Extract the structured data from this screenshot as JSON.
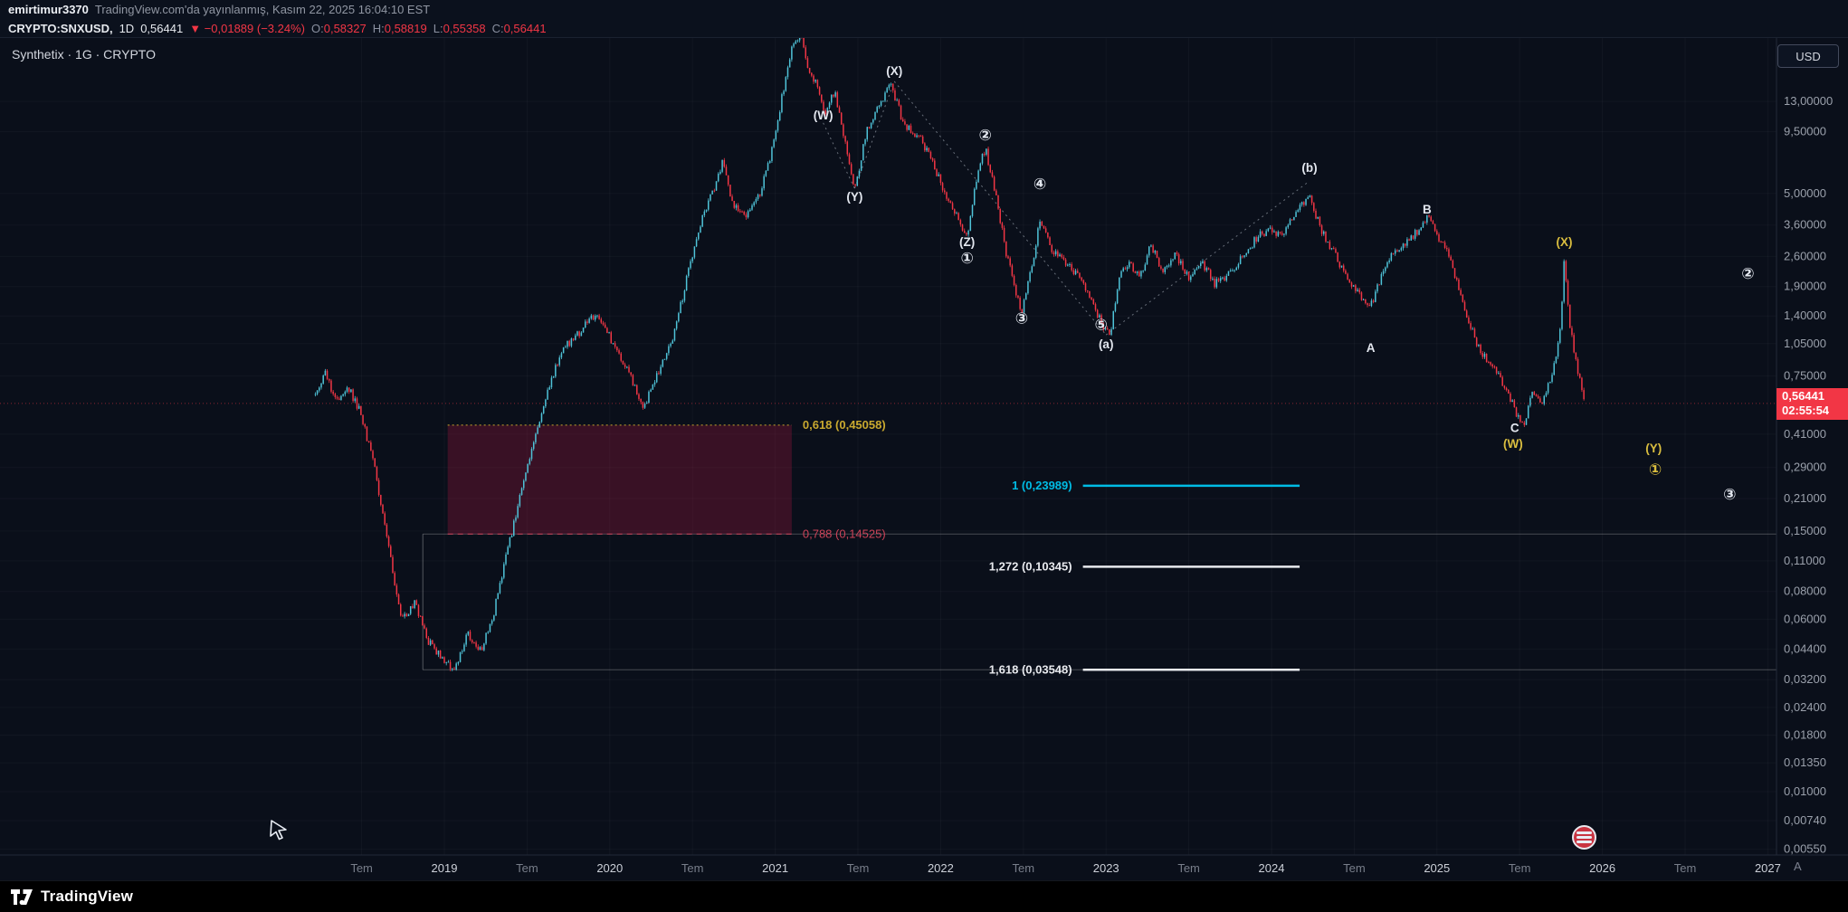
{
  "publish_bar": {
    "username": "emirtimur3370",
    "suffix": "TradingView.com'da yayınlanmış, Kasım 22, 2025 16:04:10 EST"
  },
  "symbol_bar": {
    "symbol": "CRYPTO:SNXUSD,",
    "interval": "1D",
    "last": "0,56441",
    "change": "▼ −0,01889 (−3.24%)",
    "ohlc": [
      {
        "label": "O:",
        "value": "0,58327"
      },
      {
        "label": "H:",
        "value": "0,58819"
      },
      {
        "label": "L:",
        "value": "0,55358"
      },
      {
        "label": "C:",
        "value": "0,56441"
      }
    ]
  },
  "legend": {
    "text": "Synthetix · 1G · CRYPTO"
  },
  "currency_button": {
    "label": "USD"
  },
  "price_badge": {
    "price": "0,56441",
    "countdown": "02:55:54",
    "color": "#f23645"
  },
  "axis_corner": {
    "label": "A"
  },
  "footer": {
    "brand": "TradingView"
  },
  "icons": {
    "cursor": "drawing-arrow-icon",
    "event": "red-circle-event-icon",
    "logo": "tradingview-logo-icon"
  },
  "colors": {
    "background": "#0a0f1a",
    "up": "#4fc3d8",
    "down": "#f23645",
    "gold": "#c9a92f",
    "fib_red": "#cc4358",
    "cyan": "#00bce5",
    "white_label": "#e3e7ef",
    "yellow_label": "#d9bd3f"
  },
  "chart_data": {
    "type": "candlestick",
    "title": "Synthetix SNXUSD · 1D · log scale",
    "scale": "log",
    "last_price": 0.56441,
    "x_axis": {
      "ticks": [
        {
          "t": 2018.5,
          "label": "Tem"
        },
        {
          "t": 2019,
          "label": "2019",
          "major": true
        },
        {
          "t": 2019.5,
          "label": "Tem"
        },
        {
          "t": 2020,
          "label": "2020",
          "major": true
        },
        {
          "t": 2020.5,
          "label": "Tem"
        },
        {
          "t": 2021,
          "label": "2021",
          "major": true
        },
        {
          "t": 2021.5,
          "label": "Tem"
        },
        {
          "t": 2022,
          "label": "2022",
          "major": true
        },
        {
          "t": 2022.5,
          "label": "Tem"
        },
        {
          "t": 2023,
          "label": "2023",
          "major": true
        },
        {
          "t": 2023.5,
          "label": "Tem"
        },
        {
          "t": 2024,
          "label": "2024",
          "major": true
        },
        {
          "t": 2024.5,
          "label": "Tem"
        },
        {
          "t": 2025,
          "label": "2025",
          "major": true
        },
        {
          "t": 2025.5,
          "label": "Tem"
        },
        {
          "t": 2026,
          "label": "2026",
          "major": true
        },
        {
          "t": 2026.5,
          "label": "Tem"
        },
        {
          "t": 2027,
          "label": "2027",
          "major": true
        }
      ]
    },
    "y_axis": {
      "ticks": [
        {
          "p": 13.0,
          "label": "13,00000"
        },
        {
          "p": 9.5,
          "label": "9,50000"
        },
        {
          "p": 5.0,
          "label": "5,00000"
        },
        {
          "p": 3.6,
          "label": "3,60000"
        },
        {
          "p": 2.6,
          "label": "2,60000"
        },
        {
          "p": 1.9,
          "label": "1,90000"
        },
        {
          "p": 1.4,
          "label": "1,40000"
        },
        {
          "p": 1.05,
          "label": "1,05000"
        },
        {
          "p": 0.75,
          "label": "0,75000"
        },
        {
          "p": 0.41,
          "label": "0,41000"
        },
        {
          "p": 0.29,
          "label": "0,29000"
        },
        {
          "p": 0.21,
          "label": "0,21000"
        },
        {
          "p": 0.15,
          "label": "0,15000"
        },
        {
          "p": 0.11,
          "label": "0,11000"
        },
        {
          "p": 0.08,
          "label": "0,08000"
        },
        {
          "p": 0.06,
          "label": "0,06000"
        },
        {
          "p": 0.044,
          "label": "0,04400"
        },
        {
          "p": 0.032,
          "label": "0,03200"
        },
        {
          "p": 0.024,
          "label": "0,02400"
        },
        {
          "p": 0.018,
          "label": "0,01800"
        },
        {
          "p": 0.0135,
          "label": "0,01350"
        },
        {
          "p": 0.01,
          "label": "0,01000"
        },
        {
          "p": 0.0074,
          "label": "0,00740"
        },
        {
          "p": 0.0055,
          "label": "0,00550"
        }
      ]
    },
    "price_path_keypoints": [
      [
        2018.22,
        0.62
      ],
      [
        2018.28,
        0.78
      ],
      [
        2018.34,
        0.58
      ],
      [
        2018.42,
        0.66
      ],
      [
        2018.5,
        0.5
      ],
      [
        2018.58,
        0.28
      ],
      [
        2018.66,
        0.13
      ],
      [
        2018.74,
        0.058
      ],
      [
        2018.82,
        0.072
      ],
      [
        2018.9,
        0.048
      ],
      [
        2018.98,
        0.04
      ],
      [
        2019.06,
        0.0355
      ],
      [
        2019.14,
        0.052
      ],
      [
        2019.22,
        0.043
      ],
      [
        2019.3,
        0.065
      ],
      [
        2019.4,
        0.14
      ],
      [
        2019.5,
        0.3
      ],
      [
        2019.6,
        0.55
      ],
      [
        2019.7,
        0.95
      ],
      [
        2019.8,
        1.15
      ],
      [
        2019.92,
        1.45
      ],
      [
        2020.02,
        1.05
      ],
      [
        2020.12,
        0.78
      ],
      [
        2020.2,
        0.52
      ],
      [
        2020.28,
        0.75
      ],
      [
        2020.38,
        1.1
      ],
      [
        2020.48,
        2.3
      ],
      [
        2020.56,
        3.9
      ],
      [
        2020.64,
        5.5
      ],
      [
        2020.68,
        7.0
      ],
      [
        2020.74,
        4.6
      ],
      [
        2020.82,
        3.9
      ],
      [
        2020.9,
        4.8
      ],
      [
        2020.98,
        7.8
      ],
      [
        2021.04,
        13.5
      ],
      [
        2021.1,
        22.0
      ],
      [
        2021.15,
        26.5
      ],
      [
        2021.2,
        18.5
      ],
      [
        2021.26,
        15.0
      ],
      [
        2021.3,
        11.5
      ],
      [
        2021.36,
        14.5
      ],
      [
        2021.42,
        8.5
      ],
      [
        2021.48,
        5.2
      ],
      [
        2021.55,
        9.5
      ],
      [
        2021.63,
        12.5
      ],
      [
        2021.7,
        15.5
      ],
      [
        2021.78,
        10.0
      ],
      [
        2021.86,
        9.2
      ],
      [
        2021.94,
        7.2
      ],
      [
        2022.02,
        5.2
      ],
      [
        2022.1,
        4.0
      ],
      [
        2022.16,
        3.2
      ],
      [
        2022.22,
        6.0
      ],
      [
        2022.27,
        8.0
      ],
      [
        2022.33,
        5.0
      ],
      [
        2022.4,
        2.6
      ],
      [
        2022.49,
        1.45
      ],
      [
        2022.55,
        2.3
      ],
      [
        2022.6,
        3.9
      ],
      [
        2022.68,
        2.7
      ],
      [
        2022.76,
        2.4
      ],
      [
        2022.84,
        2.1
      ],
      [
        2022.92,
        1.55
      ],
      [
        2022.98,
        1.28
      ],
      [
        2023.02,
        1.12
      ],
      [
        2023.08,
        2.1
      ],
      [
        2023.14,
        2.45
      ],
      [
        2023.2,
        2.05
      ],
      [
        2023.27,
        2.95
      ],
      [
        2023.34,
        2.25
      ],
      [
        2023.42,
        2.65
      ],
      [
        2023.5,
        2.05
      ],
      [
        2023.58,
        2.45
      ],
      [
        2023.66,
        1.95
      ],
      [
        2023.74,
        2.15
      ],
      [
        2023.82,
        2.55
      ],
      [
        2023.9,
        3.1
      ],
      [
        2023.98,
        3.45
      ],
      [
        2024.06,
        3.2
      ],
      [
        2024.14,
        4.1
      ],
      [
        2024.23,
        4.9
      ],
      [
        2024.3,
        3.4
      ],
      [
        2024.38,
        2.7
      ],
      [
        2024.46,
        2.05
      ],
      [
        2024.54,
        1.7
      ],
      [
        2024.6,
        1.55
      ],
      [
        2024.68,
        2.3
      ],
      [
        2024.76,
        2.85
      ],
      [
        2024.84,
        3.1
      ],
      [
        2024.94,
        3.9
      ],
      [
        2025.0,
        3.3
      ],
      [
        2025.08,
        2.5
      ],
      [
        2025.16,
        1.55
      ],
      [
        2025.24,
        1.05
      ],
      [
        2025.32,
        0.85
      ],
      [
        2025.4,
        0.7
      ],
      [
        2025.46,
        0.55
      ],
      [
        2025.52,
        0.45
      ],
      [
        2025.58,
        0.63
      ],
      [
        2025.64,
        0.56
      ],
      [
        2025.7,
        0.78
      ],
      [
        2025.745,
        1.2
      ],
      [
        2025.77,
        2.55
      ],
      [
        2025.8,
        1.3
      ],
      [
        2025.835,
        0.92
      ],
      [
        2025.865,
        0.7
      ],
      [
        2025.89,
        0.564
      ]
    ],
    "fib_retracement": {
      "box": {
        "t1": 2019.02,
        "t2": 2021.1,
        "p_top": 0.45058,
        "p_bottom": 0.14525
      },
      "levels": [
        {
          "label": "0,618 (0,45058)",
          "price": 0.45058,
          "color": "#c9a92f",
          "style": "dotted"
        },
        {
          "label": "0,788 (0,14525)",
          "price": 0.14525,
          "color": "#cc4358",
          "style": "dashed"
        }
      ],
      "anchor": {
        "t": 2018.87,
        "p_from": 0.14525,
        "p_to": 0.03548
      },
      "long_levels": [
        0.14525,
        0.03548
      ]
    },
    "fib_extension": {
      "t1": 2022.86,
      "t2": 2024.17,
      "levels": [
        {
          "label": "1 (0,23989)",
          "price": 0.23989,
          "color": "#00bce5"
        },
        {
          "label": "1,272 (0,10345)",
          "price": 0.10345,
          "color": "#e8eaee"
        },
        {
          "label": "1,618 (0,03548)",
          "price": 0.03548,
          "color": "#e8eaee"
        }
      ]
    },
    "wave_labels": [
      {
        "text": "(W)",
        "t": 2021.29,
        "p": 11.3,
        "color": "#e3e7ef"
      },
      {
        "text": "(X)",
        "t": 2021.72,
        "p": 17.9,
        "color": "#e3e7ef"
      },
      {
        "text": "(Y)",
        "t": 2021.48,
        "p": 4.85,
        "color": "#e3e7ef"
      },
      {
        "text": "②",
        "t": 2022.27,
        "p": 9.1,
        "color": "#e3e7ef"
      },
      {
        "text": "④",
        "t": 2022.6,
        "p": 5.48,
        "color": "#e3e7ef"
      },
      {
        "text": "(Z)",
        "t": 2022.16,
        "p": 3.03,
        "color": "#e3e7ef"
      },
      {
        "text": "①",
        "t": 2022.16,
        "p": 2.54,
        "color": "#e3e7ef"
      },
      {
        "text": "③",
        "t": 2022.49,
        "p": 1.36,
        "color": "#e3e7ef"
      },
      {
        "text": "⑤",
        "t": 2022.97,
        "p": 1.27,
        "color": "#e3e7ef"
      },
      {
        "text": "(a)",
        "t": 2023.0,
        "p": 1.05,
        "color": "#e3e7ef"
      },
      {
        "text": "(b)",
        "t": 2024.23,
        "p": 6.55,
        "color": "#e3e7ef"
      },
      {
        "text": "A",
        "t": 2024.6,
        "p": 1.01,
        "color": "#e3e7ef"
      },
      {
        "text": "B",
        "t": 2024.94,
        "p": 4.25,
        "color": "#e3e7ef"
      },
      {
        "text": "C",
        "t": 2025.47,
        "p": 0.44,
        "color": "#e3e7ef"
      },
      {
        "text": "(W)",
        "t": 2025.46,
        "p": 0.373,
        "color": "#d9bd3f"
      },
      {
        "text": "(X)",
        "t": 2025.77,
        "p": 3.03,
        "color": "#d9bd3f"
      },
      {
        "text": "(Y)",
        "t": 2026.31,
        "p": 0.356,
        "color": "#d9bd3f"
      },
      {
        "text": "①",
        "t": 2026.32,
        "p": 0.282,
        "color": "#d9bd3f"
      },
      {
        "text": "②",
        "t": 2026.88,
        "p": 2.16,
        "color": "#e3e7ef"
      },
      {
        "text": "③",
        "t": 2026.77,
        "p": 0.218,
        "color": "#e3e7ef"
      }
    ],
    "dotted_lines": [
      [
        2021.29,
        10.4,
        2021.48,
        5.27
      ],
      [
        2021.48,
        5.27,
        2021.72,
        16.0
      ],
      [
        2021.72,
        16.0,
        2023.0,
        1.15
      ],
      [
        2023.0,
        1.15,
        2024.23,
        5.69
      ]
    ]
  }
}
